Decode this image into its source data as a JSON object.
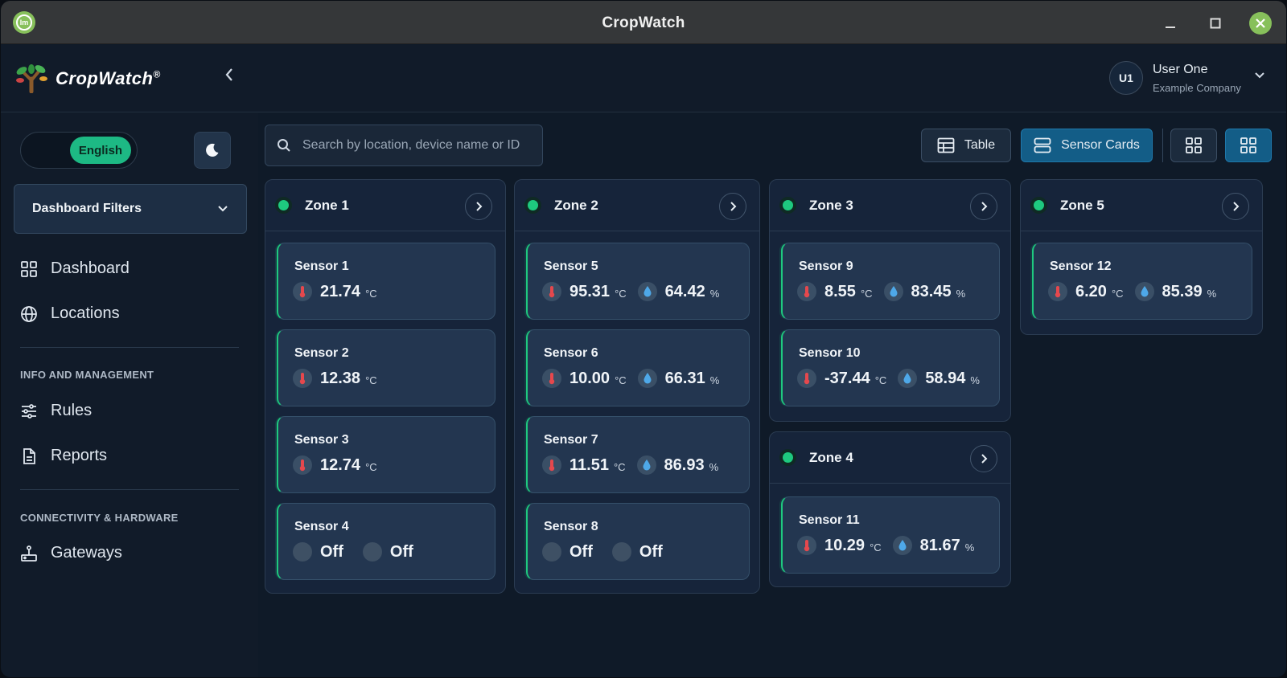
{
  "window": {
    "title": "CropWatch"
  },
  "header": {
    "brand": "CropWatch",
    "registered": "®",
    "user": {
      "initials": "U1",
      "name": "User One",
      "company": "Example Company"
    }
  },
  "sidebar": {
    "language": "English",
    "filters_label": "Dashboard Filters",
    "nav": [
      {
        "label": "Dashboard",
        "icon": "grid-icon"
      },
      {
        "label": "Locations",
        "icon": "globe-icon"
      }
    ],
    "info_heading": "INFO AND MANAGEMENT",
    "info_items": [
      {
        "label": "Rules",
        "icon": "sliders-icon"
      },
      {
        "label": "Reports",
        "icon": "document-icon"
      }
    ],
    "hw_heading": "CONNECTIVITY & HARDWARE",
    "hw_items": [
      {
        "label": "Gateways",
        "icon": "router-icon"
      }
    ]
  },
  "toolbar": {
    "search_placeholder": "Search by location, device name or ID",
    "table_label": "Table",
    "cards_label": "Sensor Cards",
    "active_view": "Sensor Cards"
  },
  "zones": [
    {
      "name": "Zone 1",
      "sensors": [
        {
          "name": "Sensor 1",
          "temp": "21.74",
          "temp_unit": "°C"
        },
        {
          "name": "Sensor 2",
          "temp": "12.38",
          "temp_unit": "°C"
        },
        {
          "name": "Sensor 3",
          "temp": "12.74",
          "temp_unit": "°C"
        },
        {
          "name": "Sensor 4",
          "off1": "Off",
          "off2": "Off"
        }
      ]
    },
    {
      "name": "Zone 2",
      "sensors": [
        {
          "name": "Sensor 5",
          "temp": "95.31",
          "temp_unit": "°C",
          "hum": "64.42",
          "hum_unit": "%"
        },
        {
          "name": "Sensor 6",
          "temp": "10.00",
          "temp_unit": "°C",
          "hum": "66.31",
          "hum_unit": "%"
        },
        {
          "name": "Sensor 7",
          "temp": "11.51",
          "temp_unit": "°C",
          "hum": "86.93",
          "hum_unit": "%"
        },
        {
          "name": "Sensor 8",
          "off1": "Off",
          "off2": "Off"
        }
      ]
    },
    {
      "name": "Zone 3",
      "sensors": [
        {
          "name": "Sensor 9",
          "temp": "8.55",
          "temp_unit": "°C",
          "hum": "83.45",
          "hum_unit": "%"
        },
        {
          "name": "Sensor 10",
          "temp": "-37.44",
          "temp_unit": "°C",
          "hum": "58.94",
          "hum_unit": "%"
        }
      ]
    },
    {
      "name": "Zone 4",
      "sensors": [
        {
          "name": "Sensor 11",
          "temp": "10.29",
          "temp_unit": "°C",
          "hum": "81.67",
          "hum_unit": "%"
        }
      ]
    },
    {
      "name": "Zone 5",
      "sensors": [
        {
          "name": "Sensor 12",
          "temp": "6.20",
          "temp_unit": "°C",
          "hum": "85.39",
          "hum_unit": "%"
        }
      ]
    }
  ],
  "colors": {
    "accent": "#1ec97f",
    "active_view": "#135d87",
    "temp_icon": "#e5484d",
    "hum_icon": "#4ea8e8"
  }
}
